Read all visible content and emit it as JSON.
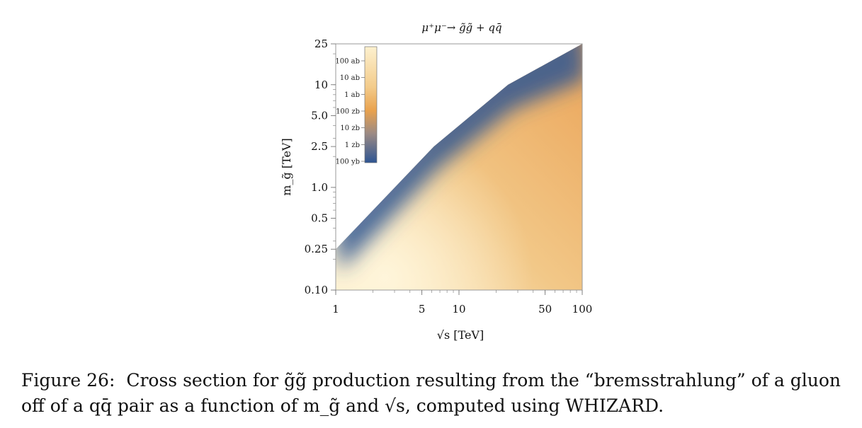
{
  "chart_data": {
    "type": "heatmap",
    "title": "μ⁺μ⁻→ g̃g̃ + qq̄",
    "xlabel": "√s [TeV]",
    "ylabel": "m_g̃ [TeV]",
    "x_scale": "log",
    "y_scale": "log",
    "xlim": [
      1,
      100
    ],
    "ylim": [
      0.1,
      25
    ],
    "x_ticks": [
      {
        "value": 1,
        "label": "1"
      },
      {
        "value": 5,
        "label": "5"
      },
      {
        "value": 10,
        "label": "10"
      },
      {
        "value": 50,
        "label": "50"
      },
      {
        "value": 100,
        "label": "100"
      }
    ],
    "y_ticks": [
      {
        "value": 0.1,
        "label": "0.10"
      },
      {
        "value": 0.25,
        "label": "0.25"
      },
      {
        "value": 0.5,
        "label": "0.5"
      },
      {
        "value": 1.0,
        "label": "1.0"
      },
      {
        "value": 2.5,
        "label": "2.5"
      },
      {
        "value": 5.0,
        "label": "5.0"
      },
      {
        "value": 10,
        "label": "10"
      },
      {
        "value": 25,
        "label": "25"
      }
    ],
    "colorbar": {
      "placement": "top-left inside",
      "labels": [
        "100 ab",
        "10 ab",
        "1 ab",
        "100 zb",
        "10 zb",
        "1 zb",
        "100 yb"
      ],
      "color_high": "#fdf1cf",
      "color_mid": "#e9a24e",
      "color_low": "#2e5592"
    },
    "kinematic_boundary": [
      {
        "x": 1,
        "y": 0.25
      },
      {
        "x": 6.25,
        "y": 2.5
      },
      {
        "x": 25,
        "y": 10
      },
      {
        "x": 100,
        "y": 25
      }
    ],
    "note": ""
  },
  "caption": {
    "label": "Figure 26:",
    "text": "Cross section for g̃g̃ production resulting from the “bremsstrahlung” of a gluon off of a qq̄ pair as a function of m_g̃ and √s, computed using WHIZARD."
  }
}
